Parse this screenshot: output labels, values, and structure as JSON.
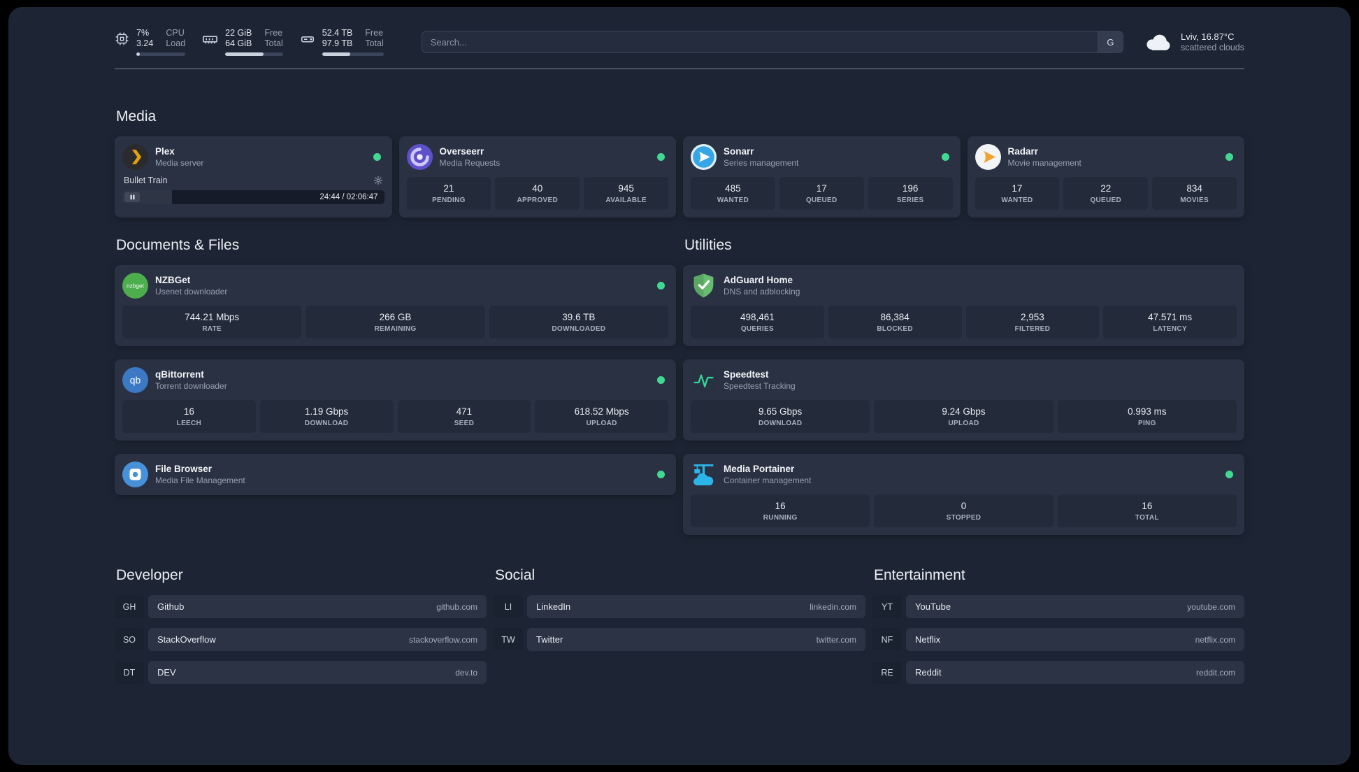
{
  "colors": {
    "background": "#1d2534",
    "card": "#2a3143",
    "stat_block": "#232a3a",
    "status_online": "#41d992",
    "plex_accent": "#e5a00d"
  },
  "topbar": {
    "resources": [
      {
        "icon": "cpu-icon",
        "value1": "7%",
        "label1": "CPU",
        "value2": "3.24",
        "label2": "Load",
        "bar_percent": 7
      },
      {
        "icon": "memory-icon",
        "value1": "22 GiB",
        "label1": "Free",
        "value2": "64 GiB",
        "label2": "Total",
        "bar_percent": 66
      },
      {
        "icon": "disk-icon",
        "value1": "52.4 TB",
        "label1": "Free",
        "value2": "97.9 TB",
        "label2": "Total",
        "bar_percent": 46
      }
    ],
    "search": {
      "placeholder": "Search...",
      "provider_label": "G"
    },
    "weather": {
      "icon": "cloud-icon",
      "location": "Lviv, 16.87°C",
      "condition": "scattered clouds"
    }
  },
  "sections": {
    "media": {
      "title": "Media",
      "cards": [
        {
          "icon": "plex-icon",
          "name": "Plex",
          "description": "Media server",
          "status": "online",
          "player": {
            "track": "Bullet Train",
            "time": "24:44 / 02:06:47",
            "progress_percent": 19
          }
        },
        {
          "icon": "overseerr-icon",
          "name": "Overseerr",
          "description": "Media Requests",
          "status": "online",
          "stats": [
            {
              "value": "21",
              "label": "PENDING"
            },
            {
              "value": "40",
              "label": "APPROVED"
            },
            {
              "value": "945",
              "label": "AVAILABLE"
            }
          ]
        },
        {
          "icon": "sonarr-icon",
          "name": "Sonarr",
          "description": "Series management",
          "status": "online",
          "stats": [
            {
              "value": "485",
              "label": "WANTED"
            },
            {
              "value": "17",
              "label": "QUEUED"
            },
            {
              "value": "196",
              "label": "SERIES"
            }
          ]
        },
        {
          "icon": "radarr-icon",
          "name": "Radarr",
          "description": "Movie management",
          "status": "online",
          "stats": [
            {
              "value": "17",
              "label": "WANTED"
            },
            {
              "value": "22",
              "label": "QUEUED"
            },
            {
              "value": "834",
              "label": "MOVIES"
            }
          ]
        }
      ]
    },
    "documents": {
      "title": "Documents & Files",
      "cards": [
        {
          "icon": "nzbget-icon",
          "name": "NZBGet",
          "description": "Usenet downloader",
          "status": "online",
          "stats": [
            {
              "value": "744.21 Mbps",
              "label": "RATE"
            },
            {
              "value": "266 GB",
              "label": "REMAINING"
            },
            {
              "value": "39.6 TB",
              "label": "DOWNLOADED"
            }
          ]
        },
        {
          "icon": "qbittorrent-icon",
          "name": "qBittorrent",
          "description": "Torrent downloader",
          "status": "online",
          "stats": [
            {
              "value": "16",
              "label": "LEECH"
            },
            {
              "value": "1.19 Gbps",
              "label": "DOWNLOAD"
            },
            {
              "value": "471",
              "label": "SEED"
            },
            {
              "value": "618.52 Mbps",
              "label": "UPLOAD"
            }
          ]
        },
        {
          "icon": "filebrowser-icon",
          "name": "File Browser",
          "description": "Media File Management",
          "status": "online"
        }
      ]
    },
    "utilities": {
      "title": "Utilities",
      "cards": [
        {
          "icon": "adguard-icon",
          "name": "AdGuard Home",
          "description": "DNS and adblocking",
          "stats": [
            {
              "value": "498,461",
              "label": "QUERIES"
            },
            {
              "value": "86,384",
              "label": "BLOCKED"
            },
            {
              "value": "2,953",
              "label": "FILTERED"
            },
            {
              "value": "47.571 ms",
              "label": "LATENCY"
            }
          ]
        },
        {
          "icon": "speedtest-icon",
          "name": "Speedtest",
          "description": "Speedtest Tracking",
          "stats": [
            {
              "value": "9.65 Gbps",
              "label": "DOWNLOAD"
            },
            {
              "value": "9.24 Gbps",
              "label": "UPLOAD"
            },
            {
              "value": "0.993 ms",
              "label": "PING"
            }
          ]
        },
        {
          "icon": "portainer-icon",
          "name": "Media Portainer",
          "description": "Container management",
          "status": "online",
          "stats": [
            {
              "value": "16",
              "label": "RUNNING"
            },
            {
              "value": "0",
              "label": "STOPPED"
            },
            {
              "value": "16",
              "label": "TOTAL"
            }
          ]
        }
      ]
    }
  },
  "bookmarks": {
    "groups": [
      {
        "title": "Developer",
        "items": [
          {
            "abbr": "GH",
            "name": "Github",
            "url": "github.com"
          },
          {
            "abbr": "SO",
            "name": "StackOverflow",
            "url": "stackoverflow.com"
          },
          {
            "abbr": "DT",
            "name": "DEV",
            "url": "dev.to"
          }
        ]
      },
      {
        "title": "Social",
        "items": [
          {
            "abbr": "LI",
            "name": "LinkedIn",
            "url": "linkedin.com"
          },
          {
            "abbr": "TW",
            "name": "Twitter",
            "url": "twitter.com"
          }
        ]
      },
      {
        "title": "Entertainment",
        "items": [
          {
            "abbr": "YT",
            "name": "YouTube",
            "url": "youtube.com"
          },
          {
            "abbr": "NF",
            "name": "Netflix",
            "url": "netflix.com"
          },
          {
            "abbr": "RE",
            "name": "Reddit",
            "url": "reddit.com"
          }
        ]
      }
    ]
  }
}
